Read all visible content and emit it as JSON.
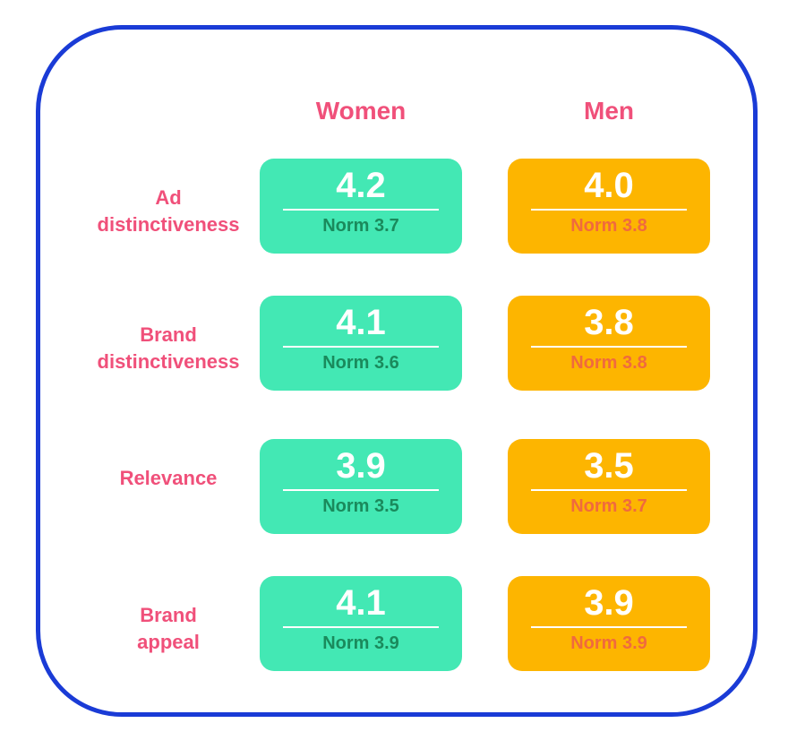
{
  "columns": {
    "women": "Women",
    "men": "Men"
  },
  "rows": [
    {
      "label_lines": [
        "Ad",
        "distinctiveness"
      ],
      "women": {
        "score": "4.2",
        "norm": "Norm 3.7"
      },
      "men": {
        "score": "4.0",
        "norm": "Norm 3.8"
      }
    },
    {
      "label_lines": [
        "Brand",
        "distinctiveness"
      ],
      "women": {
        "score": "4.1",
        "norm": "Norm 3.6"
      },
      "men": {
        "score": "3.8",
        "norm": "Norm 3.8"
      }
    },
    {
      "label_lines": [
        "Relevance"
      ],
      "women": {
        "score": "3.9",
        "norm": "Norm 3.5"
      },
      "men": {
        "score": "3.5",
        "norm": "Norm 3.7"
      }
    },
    {
      "label_lines": [
        "Brand",
        "appeal"
      ],
      "women": {
        "score": "4.1",
        "norm": "Norm 3.9"
      },
      "men": {
        "score": "3.9",
        "norm": "Norm 3.9"
      }
    }
  ],
  "colors": {
    "frame": "#1a3bd6",
    "label": "#f0507a",
    "women_card": "#43e8b4",
    "men_card": "#fdb500"
  }
}
